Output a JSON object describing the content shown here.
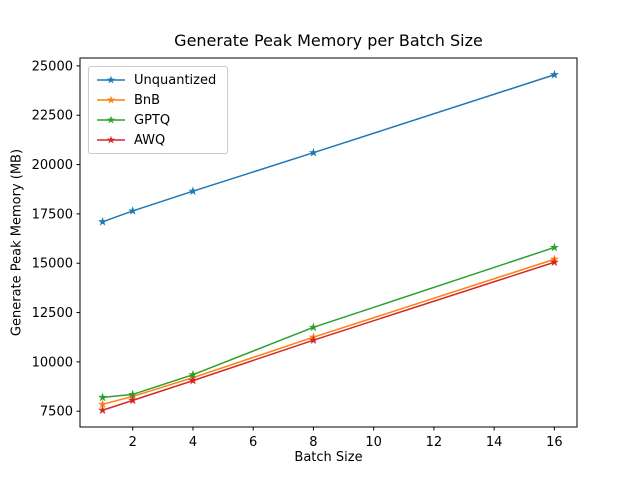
{
  "figure": {
    "background": "#ffffff"
  },
  "chart_data": {
    "type": "line",
    "x": [
      1,
      2,
      4,
      8,
      16
    ],
    "series": [
      {
        "name": "Unquantized",
        "color": "#1f77b4",
        "marker": "star",
        "values": [
          17100,
          17650,
          18650,
          20600,
          24550
        ]
      },
      {
        "name": "BnB",
        "color": "#ff7f0e",
        "marker": "star",
        "values": [
          7850,
          8250,
          9200,
          11250,
          15200
        ]
      },
      {
        "name": "GPTQ",
        "color": "#2ca02c",
        "marker": "star",
        "values": [
          8200,
          8350,
          9350,
          11750,
          15800
        ]
      },
      {
        "name": "AWQ",
        "color": "#d62728",
        "marker": "star",
        "values": [
          7550,
          8050,
          9050,
          11100,
          15050
        ]
      }
    ],
    "title": "Generate Peak Memory per Batch Size",
    "xlabel": "Batch Size",
    "ylabel": "Generate Peak Memory (MB)",
    "xticks": [
      2,
      4,
      6,
      8,
      10,
      12,
      14,
      16
    ],
    "yticks": [
      7500,
      10000,
      12500,
      15000,
      17500,
      20000,
      22500,
      25000
    ],
    "xlim": [
      0.25,
      16.75
    ],
    "ylim": [
      6700,
      25400
    ],
    "grid": false,
    "legend_position": "upper left",
    "frame_color": "#000000"
  }
}
